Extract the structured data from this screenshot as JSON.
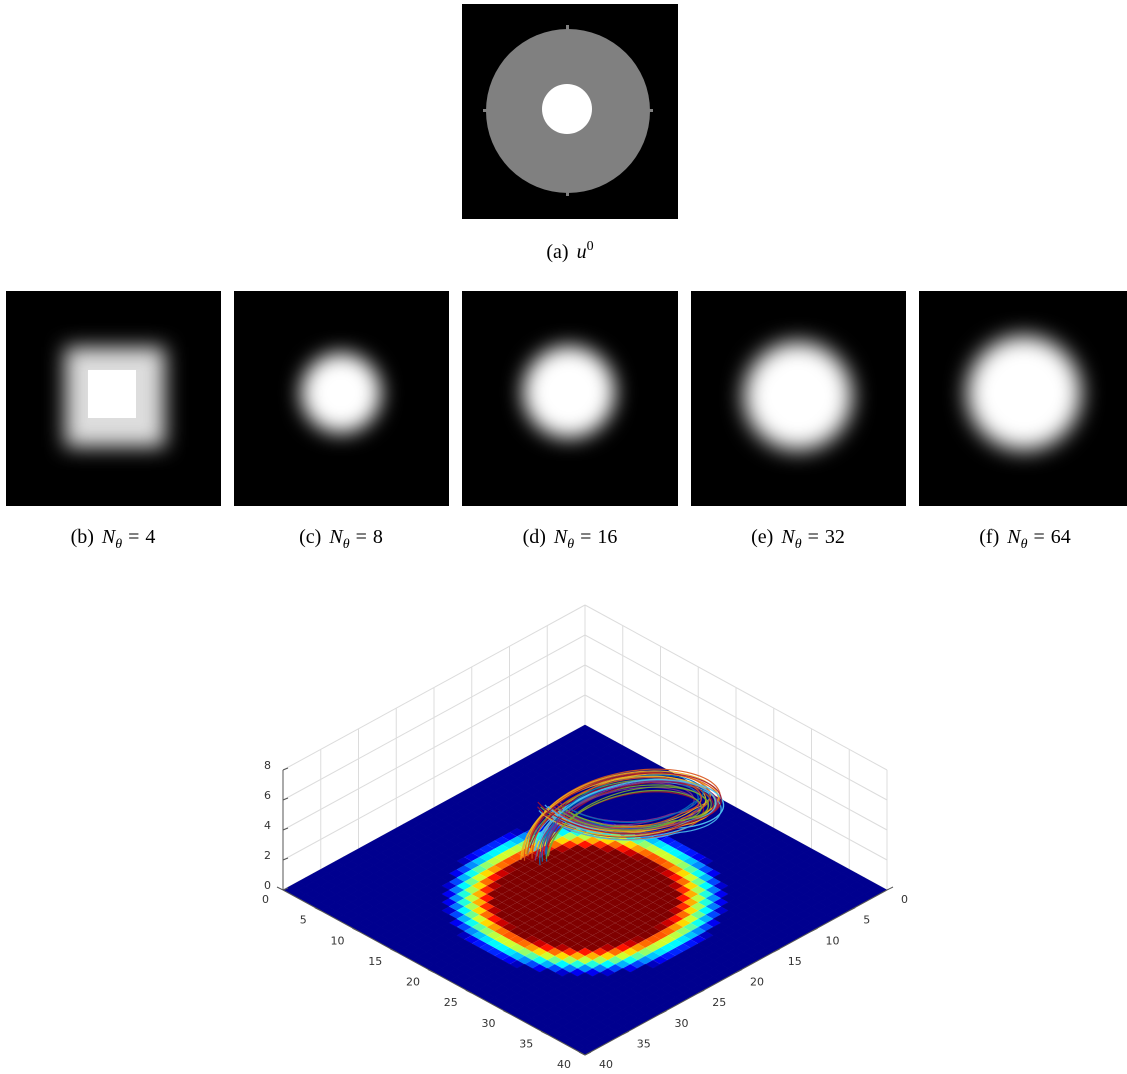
{
  "figure": {
    "top_panel": {
      "label": "(a)",
      "symbol": "u",
      "superscript": "0"
    },
    "panels": [
      {
        "label": "(b)",
        "symbol": "N",
        "subscript": "θ",
        "relation": "=",
        "value": "4"
      },
      {
        "label": "(c)",
        "symbol": "N",
        "subscript": "θ",
        "relation": "=",
        "value": "8"
      },
      {
        "label": "(d)",
        "symbol": "N",
        "subscript": "θ",
        "relation": "=",
        "value": "16"
      },
      {
        "label": "(e)",
        "symbol": "N",
        "subscript": "θ",
        "relation": "=",
        "value": "32"
      },
      {
        "label": "(f)",
        "symbol": "N",
        "subscript": "θ",
        "relation": "=",
        "value": "64"
      }
    ],
    "surface_plot": {
      "xlim": [
        0,
        40
      ],
      "ylim": [
        0,
        40
      ],
      "zlim": [
        0,
        8
      ],
      "xticks": [
        0,
        5,
        10,
        15,
        20,
        25,
        30,
        35,
        40
      ],
      "yticks": [
        0,
        5,
        10,
        15,
        20,
        25,
        30,
        35,
        40
      ],
      "zticks": [
        0,
        2,
        4,
        6,
        8
      ]
    }
  }
}
